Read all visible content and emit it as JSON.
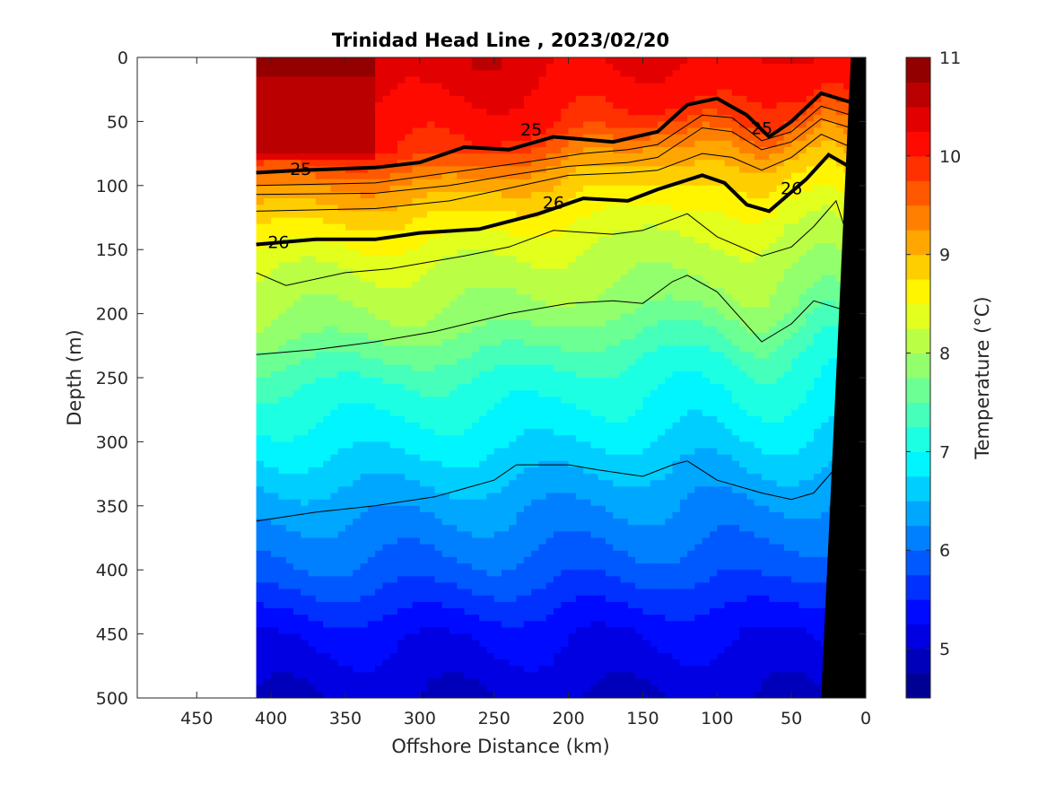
{
  "chart_data": {
    "type": "heatmap",
    "title": "Trinidad Head Line , 2023/02/20",
    "xlabel": "Offshore Distance (km)",
    "ylabel": "Depth (m)",
    "colorbar_label": "Temperature (°C)",
    "xlim": [
      490,
      0
    ],
    "ylim": [
      0,
      500
    ],
    "x_ticks": [
      "450",
      "400",
      "350",
      "300",
      "250",
      "200",
      "150",
      "100",
      "50",
      "0"
    ],
    "y_ticks": [
      "0",
      "50",
      "100",
      "150",
      "200",
      "250",
      "300",
      "350",
      "400",
      "450",
      "500"
    ],
    "clim": [
      4.5,
      11
    ],
    "colorbar_ticks": [
      "5",
      "6",
      "7",
      "8",
      "9",
      "10",
      "11"
    ],
    "colormap": "jet",
    "data_extent_km": [
      410,
      10
    ],
    "temperature_levels": [
      {
        "depth": 0,
        "temp": 10.4
      },
      {
        "depth": 60,
        "temp": 10.0
      },
      {
        "depth": 90,
        "temp": 9.2
      },
      {
        "depth": 120,
        "temp": 8.7
      },
      {
        "depth": 150,
        "temp": 8.3
      },
      {
        "depth": 200,
        "temp": 7.9
      },
      {
        "depth": 250,
        "temp": 7.2
      },
      {
        "depth": 300,
        "temp": 6.8
      },
      {
        "depth": 350,
        "temp": 6.3
      },
      {
        "depth": 400,
        "temp": 5.9
      },
      {
        "depth": 450,
        "temp": 5.3
      },
      {
        "depth": 500,
        "temp": 5.0
      }
    ],
    "surface_warm_core": {
      "x_range": [
        410,
        330
      ],
      "depth_range": [
        0,
        80
      ],
      "temp": 10.8
    },
    "density_contours": [
      {
        "label": "25",
        "bold": true,
        "label_positions": [
          [
            380,
            87
          ],
          [
            225,
            56
          ],
          [
            70,
            55
          ]
        ],
        "points": [
          [
            410,
            90
          ],
          [
            380,
            88
          ],
          [
            330,
            86
          ],
          [
            300,
            82
          ],
          [
            270,
            70
          ],
          [
            240,
            72
          ],
          [
            210,
            62
          ],
          [
            170,
            66
          ],
          [
            140,
            58
          ],
          [
            120,
            37
          ],
          [
            100,
            32
          ],
          [
            80,
            45
          ],
          [
            65,
            62
          ],
          [
            50,
            50
          ],
          [
            30,
            28
          ],
          [
            10,
            35
          ]
        ]
      },
      {
        "label": "26",
        "bold": true,
        "label_positions": [
          [
            395,
            144
          ],
          [
            210,
            113
          ],
          [
            50,
            102
          ]
        ],
        "points": [
          [
            410,
            146
          ],
          [
            370,
            142
          ],
          [
            330,
            142
          ],
          [
            300,
            137
          ],
          [
            260,
            134
          ],
          [
            220,
            122
          ],
          [
            190,
            110
          ],
          [
            160,
            112
          ],
          [
            140,
            103
          ],
          [
            110,
            92
          ],
          [
            95,
            98
          ],
          [
            80,
            115
          ],
          [
            65,
            120
          ],
          [
            40,
            95
          ],
          [
            25,
            76
          ],
          [
            10,
            86
          ]
        ]
      }
    ],
    "thin_contours": [
      [
        [
          410,
          100
        ],
        [
          330,
          98
        ],
        [
          280,
          90
        ],
        [
          230,
          82
        ],
        [
          190,
          75
        ],
        [
          160,
          72
        ],
        [
          140,
          68
        ],
        [
          110,
          45
        ],
        [
          90,
          47
        ],
        [
          70,
          65
        ],
        [
          50,
          58
        ],
        [
          30,
          38
        ],
        [
          10,
          45
        ]
      ],
      [
        [
          410,
          107
        ],
        [
          330,
          106
        ],
        [
          280,
          100
        ],
        [
          240,
          92
        ],
        [
          200,
          85
        ],
        [
          160,
          82
        ],
        [
          140,
          78
        ],
        [
          110,
          55
        ],
        [
          90,
          58
        ],
        [
          70,
          72
        ],
        [
          50,
          66
        ],
        [
          30,
          48
        ],
        [
          10,
          55
        ]
      ],
      [
        [
          410,
          120
        ],
        [
          330,
          118
        ],
        [
          280,
          112
        ],
        [
          240,
          102
        ],
        [
          200,
          92
        ],
        [
          160,
          90
        ],
        [
          140,
          88
        ],
        [
          110,
          75
        ],
        [
          90,
          78
        ],
        [
          70,
          88
        ],
        [
          50,
          78
        ],
        [
          30,
          60
        ],
        [
          10,
          70
        ]
      ],
      [
        [
          410,
          168
        ],
        [
          390,
          178
        ],
        [
          350,
          168
        ],
        [
          320,
          165
        ],
        [
          270,
          155
        ],
        [
          240,
          148
        ],
        [
          210,
          135
        ],
        [
          170,
          138
        ],
        [
          150,
          135
        ],
        [
          120,
          122
        ],
        [
          100,
          140
        ],
        [
          70,
          155
        ],
        [
          50,
          148
        ],
        [
          35,
          132
        ],
        [
          20,
          112
        ],
        [
          10,
          148
        ]
      ],
      [
        [
          410,
          232
        ],
        [
          370,
          228
        ],
        [
          330,
          222
        ],
        [
          290,
          214
        ],
        [
          240,
          200
        ],
        [
          200,
          192
        ],
        [
          170,
          190
        ],
        [
          150,
          192
        ],
        [
          130,
          175
        ],
        [
          120,
          170
        ],
        [
          100,
          183
        ],
        [
          70,
          222
        ],
        [
          50,
          208
        ],
        [
          35,
          190
        ],
        [
          15,
          197
        ],
        [
          10,
          205
        ]
      ],
      [
        [
          410,
          362
        ],
        [
          370,
          355
        ],
        [
          330,
          350
        ],
        [
          290,
          343
        ],
        [
          250,
          330
        ],
        [
          235,
          318
        ],
        [
          200,
          318
        ],
        [
          180,
          322
        ],
        [
          150,
          327
        ],
        [
          130,
          318
        ],
        [
          120,
          315
        ],
        [
          100,
          330
        ],
        [
          70,
          340
        ],
        [
          50,
          345
        ],
        [
          35,
          340
        ],
        [
          20,
          320
        ]
      ]
    ],
    "bathymetry_polygon": [
      [
        10,
        0
      ],
      [
        30,
        500
      ],
      [
        0,
        500
      ],
      [
        0,
        0
      ]
    ]
  }
}
